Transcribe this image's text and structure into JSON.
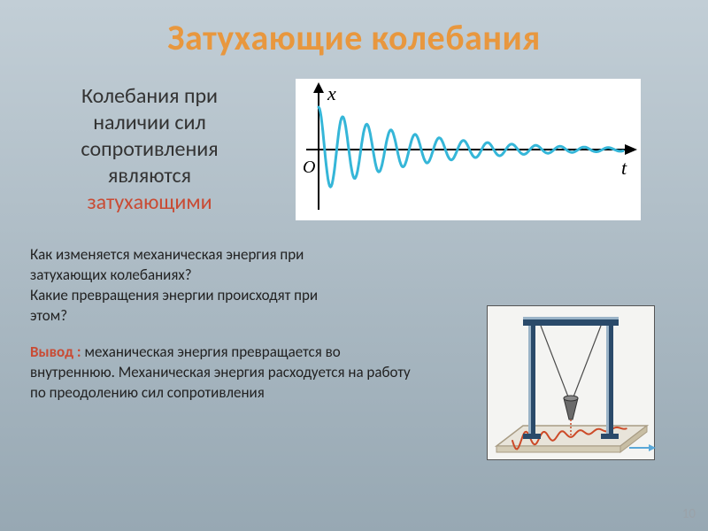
{
  "title": "Затухающие колебания",
  "intro": {
    "line1": "Колебания при",
    "line2": "наличии сил",
    "line3": "сопротивления",
    "line4": "являются",
    "highlight": "затухающими"
  },
  "graph": {
    "type": "line",
    "x_axis_label": "t",
    "y_axis_label": "x",
    "origin_label": "O",
    "background_color": "#ffffff",
    "axis_color": "#000000",
    "curve_color": "#35b6d8",
    "curve_width": 3,
    "xlim": [
      0,
      360
    ],
    "initial_amplitude": 48,
    "decay_constant": 0.009,
    "angular_freq": 0.22,
    "cycles_visible": 11
  },
  "questions": {
    "q1": "Как изменяется механическая энергия при затухающих колебаниях?",
    "q2": "Какие превращения энергии происходят при этом?"
  },
  "conclusion": {
    "lead": "Вывод :",
    "text": " механическая энергия превращается во внутреннюю. Механическая энергия расходуется на работу по преодолению сил сопротивления"
  },
  "device": {
    "frame_color": "#2a4a6a",
    "frame_highlight": "#9bb4c8",
    "pendulum_string_color": "#4a4a4a",
    "bob_color": "#6a6a6a",
    "plate_color": "#e8e4da",
    "plate_border": "#a89c84",
    "sand_trace_color": "#cc4a28"
  },
  "page_number": "10"
}
